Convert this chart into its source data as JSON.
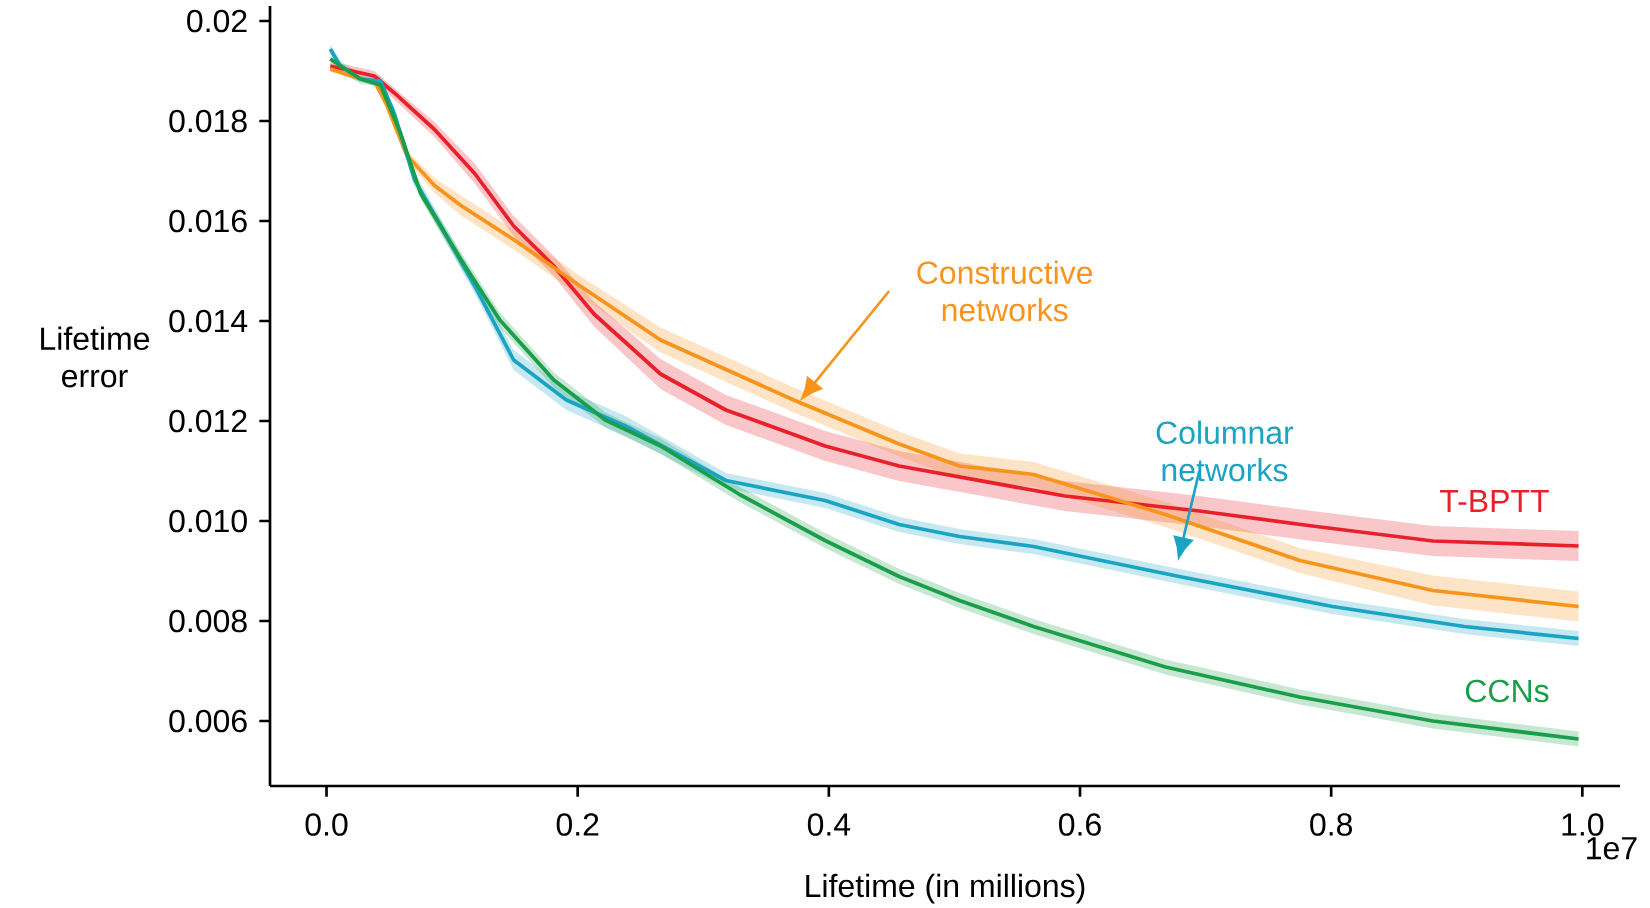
{
  "chart_data": {
    "type": "line",
    "xlabel": "Lifetime (in millions)",
    "ylabel": "Lifetime error",
    "annotations": [
      "1e7"
    ],
    "xlim": [
      -0.045,
      1.03
    ],
    "ylim": [
      0.0047,
      0.0203
    ],
    "xticks": [
      {
        "value": 0,
        "label": "0.0"
      },
      0.2,
      0.4,
      0.6,
      0.8,
      {
        "value": 1,
        "label": "1.0"
      }
    ],
    "yticks": [
      0.006,
      0.008,
      {
        "value": 0.01,
        "label": "0.010"
      },
      0.012,
      0.014,
      0.016,
      0.018,
      0.02
    ],
    "grid": false,
    "marker": "none",
    "line_style": "solid",
    "series": [
      {
        "name": "T-BPTT",
        "color": "#e8202a",
        "x": [
          0.003,
          0.038,
          0.054,
          0.086,
          0.118,
          0.149,
          0.181,
          0.213,
          0.266,
          0.318,
          0.397,
          0.456,
          0.588,
          0.695,
          0.785,
          0.881,
          0.997
        ],
        "values": [
          0.0191,
          0.0189,
          0.01856,
          0.01783,
          0.01695,
          0.0159,
          0.0151,
          0.01414,
          0.01294,
          0.01222,
          0.0115,
          0.0111,
          0.0105,
          0.0102,
          0.0099,
          0.0096,
          0.0095
        ],
        "lower": [
          0.019,
          0.0188,
          null,
          0.01768,
          0.01675,
          0.0157,
          0.0149,
          0.01389,
          0.01264,
          0.01192,
          0.0112,
          0.0108,
          0.0102,
          0.0099,
          0.0096,
          0.0093,
          0.0092
        ],
        "upper": [
          0.0192,
          0.019,
          null,
          0.01798,
          0.01715,
          0.0161,
          0.0153,
          0.01439,
          0.01324,
          0.01252,
          0.0118,
          0.0114,
          0.0108,
          0.0105,
          0.0102,
          0.0099,
          0.0098
        ]
      },
      {
        "name": "Constructive networks",
        "color": "#f7941d",
        "x": [
          0.003,
          0.027,
          0.038,
          0.048,
          0.064,
          0.086,
          0.107,
          0.149,
          0.202,
          0.266,
          0.372,
          0.456,
          0.504,
          0.563,
          0.668,
          0.775,
          0.881,
          0.997
        ],
        "values": [
          0.01904,
          0.01884,
          0.0188,
          0.01832,
          0.01731,
          0.01671,
          0.01631,
          0.01563,
          0.0147,
          0.01362,
          0.01242,
          0.01154,
          0.0111,
          0.01093,
          0.01013,
          0.00921,
          0.00861,
          0.00829
        ],
        "lower": [
          0.01899,
          0.01879,
          0.01875,
          0.01822,
          0.01721,
          0.01656,
          0.01611,
          0.01543,
          0.0145,
          0.01337,
          0.01217,
          0.01129,
          0.01085,
          0.01068,
          0.00988,
          0.00896,
          0.00831,
          0.00799
        ],
        "upper": [
          0.01909,
          0.01889,
          0.01885,
          0.01842,
          0.01741,
          0.01686,
          0.01651,
          0.01583,
          0.0149,
          0.01387,
          0.01267,
          0.01179,
          0.01135,
          0.01118,
          0.01038,
          0.00946,
          0.00891,
          0.00859
        ]
      },
      {
        "name": "Columnar networks",
        "color": "#1aa3c2",
        "x": [
          0.003,
          0.011,
          0.027,
          0.043,
          0.054,
          0.07,
          0.091,
          0.118,
          0.149,
          0.191,
          0.238,
          0.318,
          0.397,
          0.456,
          0.504,
          0.563,
          0.679,
          0.801,
          0.906,
          0.997
        ],
        "values": [
          0.01944,
          0.0191,
          0.01884,
          0.0188,
          0.01815,
          0.01683,
          0.0159,
          0.0147,
          0.01322,
          0.01242,
          0.0119,
          0.01081,
          0.01041,
          0.00993,
          0.00969,
          0.00949,
          0.00889,
          0.00829,
          0.00789,
          0.00765
        ],
        "lower": [
          0.01934,
          0.019,
          0.01874,
          0.0187,
          0.01805,
          0.01668,
          0.01575,
          0.01455,
          0.01302,
          0.01222,
          0.0117,
          0.01066,
          0.01026,
          0.00978,
          0.00954,
          0.00934,
          0.00874,
          0.00814,
          0.00774,
          0.0075
        ],
        "upper": [
          0.01954,
          0.0192,
          0.01894,
          0.0189,
          0.01825,
          0.01698,
          0.01605,
          0.01485,
          0.01342,
          0.01262,
          0.0121,
          0.01096,
          0.01056,
          0.01008,
          0.00984,
          0.00964,
          0.00904,
          0.00844,
          0.00804,
          0.0078
        ]
      },
      {
        "name": "CCNs",
        "color": "#1a9e4a",
        "x": [
          0.003,
          0.027,
          0.043,
          0.059,
          0.075,
          0.107,
          0.138,
          0.181,
          0.222,
          0.266,
          0.329,
          0.397,
          0.456,
          0.504,
          0.563,
          0.668,
          0.775,
          0.881,
          0.997
        ],
        "values": [
          0.01924,
          0.01884,
          0.01872,
          0.01775,
          0.01655,
          0.01523,
          0.01402,
          0.01282,
          0.01202,
          0.0115,
          0.01053,
          0.00961,
          0.00889,
          0.00841,
          0.00789,
          0.00708,
          0.00648,
          0.006,
          0.00564
        ],
        "lower": [
          0.01919,
          0.01879,
          0.01867,
          0.01765,
          0.01645,
          0.01508,
          0.01387,
          0.01267,
          0.01187,
          0.01135,
          0.01038,
          0.00946,
          0.00874,
          0.00826,
          0.00774,
          0.00693,
          0.00633,
          0.00585,
          0.00549
        ],
        "upper": [
          0.01929,
          0.01889,
          0.01877,
          0.01785,
          0.01665,
          0.01538,
          0.01417,
          0.01297,
          0.01217,
          0.01165,
          0.01068,
          0.00976,
          0.00904,
          0.00856,
          0.00804,
          0.00723,
          0.00663,
          0.00615,
          0.00579
        ]
      }
    ]
  }
}
